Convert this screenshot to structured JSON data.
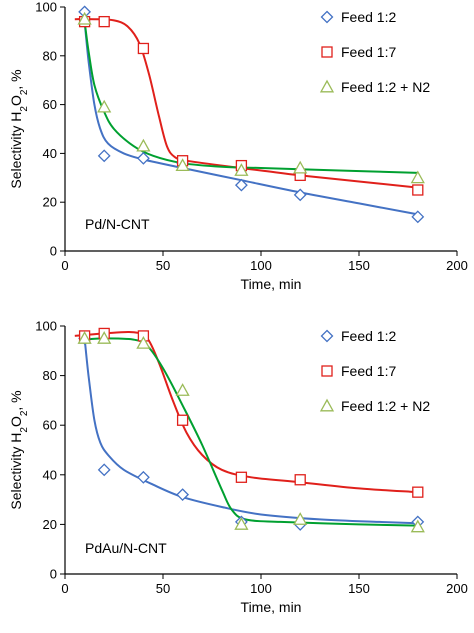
{
  "chart_data": [
    {
      "type": "scatter",
      "panel_label": "Pd/N-CNT",
      "xlabel": "Time, min",
      "ylabel_parts": [
        "Selectivity H",
        "2",
        "O",
        "2",
        ", %"
      ],
      "xlim": [
        0,
        200
      ],
      "ylim": [
        0,
        100
      ],
      "xticks": [
        0,
        50,
        100,
        150,
        200
      ],
      "yticks": [
        0,
        20,
        40,
        60,
        80,
        100
      ],
      "grid": false,
      "legend_position": "top-right",
      "series": [
        {
          "name": "Feed 1:2",
          "marker": "diamond",
          "color": "#4472C4",
          "points": [
            [
              10,
              98
            ],
            [
              20,
              39
            ],
            [
              40,
              38
            ],
            [
              60,
              36
            ],
            [
              90,
              27
            ],
            [
              120,
              23
            ],
            [
              180,
              14
            ]
          ],
          "fit": [
            [
              10,
              94
            ],
            [
              12,
              78
            ],
            [
              15,
              60
            ],
            [
              18,
              50
            ],
            [
              22,
              44
            ],
            [
              30,
              40
            ],
            [
              40,
              37.5
            ],
            [
              60,
              34
            ],
            [
              90,
              29
            ],
            [
              120,
              24
            ],
            [
              150,
              19.5
            ],
            [
              180,
              15
            ]
          ]
        },
        {
          "name": "Feed 1:7",
          "marker": "square",
          "color": "#E0201B",
          "points": [
            [
              10,
              94
            ],
            [
              20,
              94
            ],
            [
              40,
              83
            ],
            [
              60,
              37
            ],
            [
              90,
              35
            ],
            [
              120,
              31
            ],
            [
              180,
              25
            ]
          ],
          "fit": [
            [
              5,
              95
            ],
            [
              15,
              95
            ],
            [
              25,
              94.5
            ],
            [
              32,
              92
            ],
            [
              38,
              85
            ],
            [
              43,
              72
            ],
            [
              48,
              55
            ],
            [
              52,
              43
            ],
            [
              56,
              38.5
            ],
            [
              62,
              37
            ],
            [
              80,
              35
            ],
            [
              100,
              33
            ],
            [
              120,
              31
            ],
            [
              150,
              28.5
            ],
            [
              180,
              26
            ]
          ]
        },
        {
          "name": "Feed 1:2 + N2",
          "marker": "triangle",
          "color": "#00A030",
          "points": [
            [
              10,
              95
            ],
            [
              20,
              59
            ],
            [
              40,
              43
            ],
            [
              60,
              35
            ],
            [
              90,
              33
            ],
            [
              120,
              34
            ],
            [
              180,
              30
            ]
          ],
          "fit": [
            [
              10,
              94
            ],
            [
              12,
              82
            ],
            [
              15,
              68
            ],
            [
              20,
              57
            ],
            [
              25,
              50
            ],
            [
              35,
              43
            ],
            [
              45,
              39
            ],
            [
              60,
              36
            ],
            [
              80,
              34.5
            ],
            [
              100,
              34
            ],
            [
              140,
              33
            ],
            [
              180,
              32
            ]
          ]
        }
      ]
    },
    {
      "type": "scatter",
      "panel_label": "PdAu/N-CNT",
      "xlabel": "Time, min",
      "ylabel_parts": [
        "Selectivity H",
        "2",
        "O",
        "2",
        ", %"
      ],
      "xlim": [
        0,
        200
      ],
      "ylim": [
        0,
        100
      ],
      "xticks": [
        0,
        50,
        100,
        150,
        200
      ],
      "yticks": [
        0,
        20,
        40,
        60,
        80,
        100
      ],
      "grid": false,
      "legend_position": "top-right",
      "series": [
        {
          "name": "Feed 1:2",
          "marker": "diamond",
          "color": "#4472C4",
          "points": [
            [
              10,
              95
            ],
            [
              20,
              42
            ],
            [
              40,
              39
            ],
            [
              60,
              32
            ],
            [
              90,
              21
            ],
            [
              120,
              20
            ],
            [
              180,
              21
            ]
          ],
          "fit": [
            [
              10,
              95
            ],
            [
              12,
              80
            ],
            [
              15,
              62
            ],
            [
              18,
              53
            ],
            [
              22,
              48
            ],
            [
              30,
              42
            ],
            [
              45,
              36
            ],
            [
              60,
              31
            ],
            [
              80,
              27
            ],
            [
              100,
              24
            ],
            [
              130,
              22
            ],
            [
              160,
              21
            ],
            [
              180,
              20.5
            ]
          ]
        },
        {
          "name": "Feed 1:7",
          "marker": "square",
          "color": "#E0201B",
          "points": [
            [
              10,
              96
            ],
            [
              20,
              97
            ],
            [
              40,
              96
            ],
            [
              60,
              62
            ],
            [
              90,
              39
            ],
            [
              120,
              38
            ],
            [
              180,
              33
            ]
          ],
          "fit": [
            [
              5,
              96
            ],
            [
              20,
              97
            ],
            [
              35,
              97.5
            ],
            [
              42,
              95
            ],
            [
              48,
              85
            ],
            [
              55,
              70
            ],
            [
              62,
              57
            ],
            [
              70,
              48
            ],
            [
              80,
              42
            ],
            [
              95,
              39
            ],
            [
              120,
              37
            ],
            [
              150,
              34.5
            ],
            [
              180,
              33
            ]
          ]
        },
        {
          "name": "Feed 1:2 + N2",
          "marker": "triangle",
          "color": "#00A030",
          "points": [
            [
              10,
              95
            ],
            [
              20,
              95
            ],
            [
              40,
              93
            ],
            [
              60,
              74
            ],
            [
              90,
              20
            ],
            [
              120,
              22
            ],
            [
              180,
              19
            ]
          ],
          "fit": [
            [
              10,
              94.5
            ],
            [
              20,
              95
            ],
            [
              35,
              94.5
            ],
            [
              42,
              92
            ],
            [
              50,
              83
            ],
            [
              60,
              68
            ],
            [
              70,
              52
            ],
            [
              80,
              34
            ],
            [
              85,
              26
            ],
            [
              92,
              22
            ],
            [
              110,
              21
            ],
            [
              150,
              20
            ],
            [
              180,
              19.5
            ]
          ]
        }
      ]
    }
  ]
}
